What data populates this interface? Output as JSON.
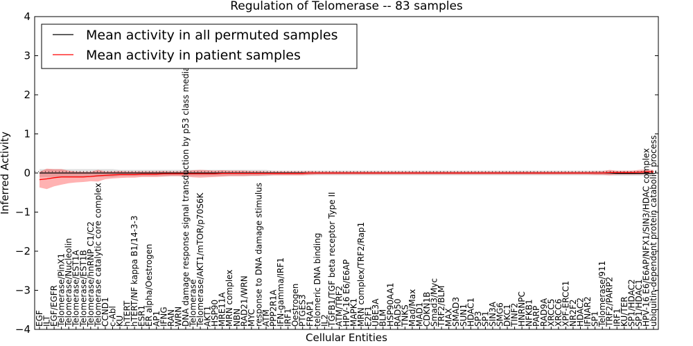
{
  "chart_data": {
    "type": "line",
    "title": "Regulation of Telomerase -- 83 samples",
    "xlabel": "Cellular Entities",
    "ylabel": "Inferred Activity",
    "ylim": [
      -4,
      4
    ],
    "yticks": [
      "4",
      "3",
      "2",
      "1",
      "0",
      "−1",
      "−2",
      "−3",
      "−4"
    ],
    "grid": false,
    "legend": {
      "placement": "top-left",
      "entries": [
        {
          "label": "Mean activity in all permuted samples",
          "color": "#000000"
        },
        {
          "label": "Mean activity in patient samples",
          "color": "#ff0000"
        }
      ]
    },
    "categories": [
      "EGF",
      "ILT",
      "EGF/EGFR",
      "Telomerase/PinX1",
      "Telomerase/Nucleolin",
      "Telomerase/EST1A",
      "Telomerase/EST1B",
      "Telomerase/hnRNP C1/C2",
      "Telomerase catalytic core complex",
      "CCND1",
      "c-Abl",
      "KU",
      "hTERT",
      "hTERT/NF kappa B1/14-3-3",
      "ESR1",
      "ER alpha/Oestrogen",
      "AP1",
      "IFNG",
      "RAN",
      "WRN",
      "DNA damage response signal transduction by p53 class mediator re",
      "Telomerase",
      "Telomerase/AKT1/mTOR/p70S6K",
      "AKT1",
      "HSP90",
      "MRE11A",
      "MRN complex",
      "NBN",
      "RAD21/WRN",
      "MYC",
      "response to DNA damage stimulus",
      "ATM",
      "PPP2R1A",
      "IFN-gamma/IRF1",
      "IRF1",
      "Oestrogen",
      "PTGES3",
      "FRAP1",
      "telomeric DNA binding",
      "IL2",
      "TGFB1/TGF beta receptor Type II",
      "ATM/TRF2",
      "HPV-16 E6/E6AP",
      "MAPK1",
      "MRN complex/TRF2/Rap1",
      "E2F1",
      "UBE3A",
      "BLM",
      "HSP90AA1",
      "RAD50",
      "TNKS",
      "Mad/Max",
      "MAD1",
      "CDKN1B",
      "Smad3/Myc",
      "TRF2/BLM",
      "MAX",
      "SMAD3",
      "SUN1",
      "HDAC1",
      "SP3",
      "SP1",
      "SIN3A",
      "SMG6",
      "DKC1",
      "TINF2",
      "HNRNPC",
      "NFKB1",
      "PARP",
      "RAD9A",
      "XRCC5",
      "XRCC6",
      "XPF-ERCC1",
      "NR2F2",
      "HDAC2",
      "IFNAR2",
      "SP1",
      "Telomerase/911",
      "TRF2/PARP2",
      "IRF1",
      "KU/TER",
      "SP1/HDAC2",
      "SP1/HDAC1",
      "HPV-16 E6/E6AP/NFX1/SIN3/HDAC complex",
      "ubiquitin-dependent protein catabolic process"
    ],
    "series": [
      {
        "name": "Mean activity in patient samples",
        "color": "#ff0000",
        "values": [
          -0.17,
          -0.15,
          -0.12,
          -0.1,
          -0.1,
          -0.1,
          -0.1,
          -0.09,
          -0.07,
          -0.06,
          -0.05,
          -0.04,
          -0.04,
          -0.04,
          -0.03,
          -0.03,
          -0.03,
          -0.02,
          -0.02,
          -0.02,
          -0.02,
          -0.02,
          -0.02,
          -0.02,
          -0.02,
          -0.01,
          -0.01,
          -0.01,
          -0.01,
          -0.01,
          -0.01,
          -0.01,
          -0.01,
          -0.01,
          -0.01,
          -0.01,
          -0.01,
          0,
          0,
          0,
          0,
          0,
          0,
          0,
          0,
          0,
          0,
          0,
          0,
          0,
          0,
          0,
          0,
          0,
          0,
          0,
          0,
          0,
          0,
          0,
          0,
          0,
          0,
          0,
          0,
          0,
          0,
          0,
          0,
          0,
          0,
          0,
          0,
          0,
          0,
          0,
          0,
          0,
          0.01,
          0.01,
          0.01,
          0.01,
          0.02,
          0.03,
          0.03
        ],
        "band": [
          0.2,
          0.26,
          0.22,
          0.2,
          0.16,
          0.14,
          0.13,
          0.12,
          0.15,
          0.1,
          0.09,
          0.09,
          0.08,
          0.08,
          0.07,
          0.07,
          0.07,
          0.07,
          0.06,
          0.06,
          0.07,
          0.09,
          0.1,
          0.09,
          0.08,
          0.08,
          0.07,
          0.07,
          0.07,
          0.06,
          0.06,
          0.05,
          0.05,
          0.05,
          0.05,
          0.05,
          0.05,
          0.05,
          0.04,
          0.04,
          0.04,
          0.04,
          0.04,
          0.04,
          0.04,
          0.04,
          0.04,
          0.04,
          0.04,
          0.04,
          0.04,
          0.04,
          0.04,
          0.04,
          0.04,
          0.04,
          0.04,
          0.04,
          0.04,
          0.04,
          0.04,
          0.04,
          0.04,
          0.04,
          0.04,
          0.04,
          0.04,
          0.04,
          0.04,
          0.04,
          0.04,
          0.04,
          0.04,
          0.04,
          0.04,
          0.04,
          0.05,
          0.05,
          0.07,
          0.05,
          0.05,
          0.05,
          0.06,
          0.06,
          0.05
        ]
      },
      {
        "name": "Mean activity in all permuted samples",
        "color": "#000000",
        "values": [
          0,
          0,
          0,
          0,
          0,
          0,
          0,
          0,
          0,
          0,
          0,
          0,
          0,
          0,
          0,
          0,
          0,
          0,
          0,
          0,
          0,
          0,
          0,
          0,
          0,
          0,
          0,
          0,
          0,
          0,
          0,
          0,
          0,
          0,
          0,
          0,
          0,
          0,
          0,
          0,
          0,
          0,
          0,
          0,
          0,
          0,
          0,
          0,
          0,
          0,
          0,
          0,
          0,
          0,
          0,
          0,
          0,
          0,
          0,
          0,
          0,
          0,
          0,
          0,
          0,
          0,
          0,
          0,
          0,
          0,
          0,
          0,
          0,
          0,
          0,
          0,
          0,
          0,
          0,
          -0.01,
          -0.01,
          -0.01,
          -0.01,
          -0.01,
          -0.01
        ],
        "band": [
          0.1,
          0.1,
          0.1,
          0.1,
          0.1,
          0.1,
          0.1,
          0.1,
          0.1,
          0.1,
          0.1,
          0.08,
          0.08,
          0.08,
          0.08,
          0.08,
          0.08,
          0.08,
          0.08,
          0.08,
          0.08,
          0.08,
          0.08,
          0.08,
          0.08,
          0.08,
          0.08,
          0.08,
          0.08,
          0.08,
          0.08,
          0.08,
          0.06,
          0.06,
          0.06,
          0.06,
          0.06,
          0.06,
          0.06,
          0.06,
          0.06,
          0.06,
          0.06,
          0.06,
          0.06,
          0.06,
          0.06,
          0.06,
          0.06,
          0.06,
          0.06,
          0.06,
          0.06,
          0.06,
          0.06,
          0.06,
          0.06,
          0.06,
          0.06,
          0.06,
          0.06,
          0.06,
          0.06,
          0.06,
          0.06,
          0.06,
          0.06,
          0.06,
          0.06,
          0.06,
          0.06,
          0.06,
          0.06,
          0.06,
          0.06,
          0.06,
          0.06,
          0.06,
          0.06,
          0.06,
          0.06,
          0.06,
          0.06,
          0.06,
          0.06
        ]
      }
    ]
  }
}
